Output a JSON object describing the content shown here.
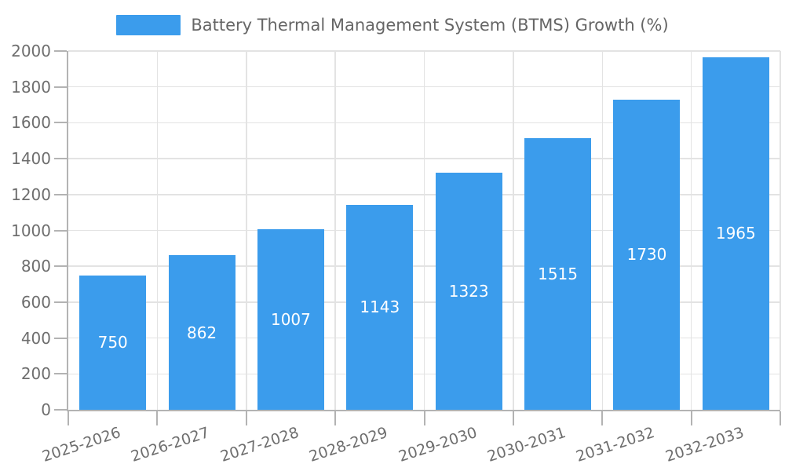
{
  "legend": {
    "label": "Battery Thermal Management System (BTMS) Growth (%)"
  },
  "colors": {
    "bar": "#3b9cec",
    "axis": "#b3b3b3",
    "tick": "#b3b3b3",
    "grid": "#e3e3e3",
    "tick_label": "#6e6e6e",
    "legend_text": "#666666",
    "value_label": "#ffffff"
  },
  "chart_data": {
    "type": "bar",
    "title": "Battery Thermal Management System (BTMS) Growth (%)",
    "series_name": "Battery Thermal Management System (BTMS) Growth (%)",
    "categories": [
      "2025-2026",
      "2026-2027",
      "2027-2028",
      "2028-2029",
      "2029-2030",
      "2030-2031",
      "2031-2032",
      "2032-2033"
    ],
    "values": [
      750,
      862,
      1007,
      1143,
      1323,
      1515,
      1730,
      1965
    ],
    "value_labels_inside_bars": true,
    "xlabel": "",
    "ylabel": "",
    "ylim": [
      0,
      2000
    ],
    "y_tick_step": 200,
    "grid": true,
    "legend_position": "top-center",
    "x_label_rotation_deg": -18
  }
}
